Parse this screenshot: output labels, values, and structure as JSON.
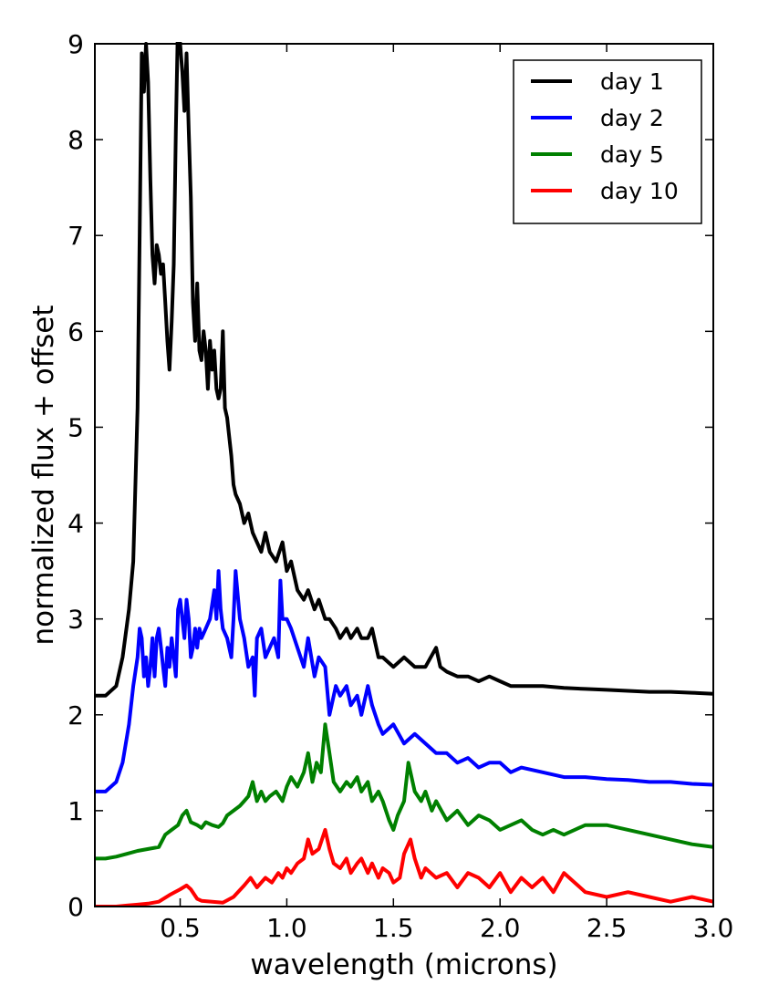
{
  "chart_data": {
    "type": "line",
    "title": "",
    "xlabel": "wavelength (microns)",
    "ylabel": "normalized flux + offset",
    "xlim": [
      0.1,
      3.0
    ],
    "ylim": [
      0,
      9
    ],
    "xticks": [
      0.5,
      1.0,
      1.5,
      2.0,
      2.5,
      3.0
    ],
    "xtick_labels": [
      "0.5",
      "1.0",
      "1.5",
      "2.0",
      "2.5",
      "3.0"
    ],
    "yticks": [
      0,
      1,
      2,
      3,
      4,
      5,
      6,
      7,
      8,
      9
    ],
    "ytick_labels": [
      "0",
      "1",
      "2",
      "3",
      "4",
      "5",
      "6",
      "7",
      "8",
      "9"
    ],
    "grid": false,
    "legend_position": "top-right",
    "series": [
      {
        "name": "day 1",
        "color": "#000000",
        "x": [
          0.1,
          0.15,
          0.2,
          0.23,
          0.26,
          0.28,
          0.3,
          0.31,
          0.32,
          0.33,
          0.34,
          0.35,
          0.36,
          0.37,
          0.38,
          0.39,
          0.4,
          0.41,
          0.42,
          0.43,
          0.44,
          0.45,
          0.46,
          0.47,
          0.48,
          0.49,
          0.5,
          0.51,
          0.52,
          0.53,
          0.54,
          0.55,
          0.56,
          0.57,
          0.58,
          0.59,
          0.6,
          0.61,
          0.62,
          0.63,
          0.64,
          0.65,
          0.66,
          0.67,
          0.68,
          0.69,
          0.7,
          0.71,
          0.72,
          0.73,
          0.74,
          0.75,
          0.76,
          0.78,
          0.8,
          0.82,
          0.84,
          0.86,
          0.88,
          0.9,
          0.92,
          0.95,
          0.98,
          1.0,
          1.02,
          1.05,
          1.08,
          1.1,
          1.13,
          1.15,
          1.18,
          1.2,
          1.23,
          1.25,
          1.28,
          1.3,
          1.33,
          1.35,
          1.38,
          1.4,
          1.43,
          1.45,
          1.5,
          1.55,
          1.6,
          1.65,
          1.7,
          1.72,
          1.75,
          1.8,
          1.85,
          1.9,
          1.95,
          2.0,
          2.05,
          2.1,
          2.2,
          2.3,
          2.4,
          2.5,
          2.6,
          2.7,
          2.8,
          2.9,
          3.0
        ],
        "y": [
          2.2,
          2.2,
          2.3,
          2.6,
          3.1,
          3.6,
          5.2,
          7.0,
          8.9,
          8.5,
          9.0,
          8.6,
          7.6,
          6.8,
          6.5,
          6.9,
          6.8,
          6.6,
          6.7,
          6.3,
          5.9,
          5.6,
          6.1,
          6.7,
          8.1,
          9.3,
          9.0,
          8.7,
          8.3,
          8.9,
          8.1,
          7.4,
          6.3,
          5.9,
          6.5,
          5.8,
          5.7,
          6.0,
          5.8,
          5.4,
          5.9,
          5.6,
          5.8,
          5.4,
          5.3,
          5.4,
          6.0,
          5.2,
          5.1,
          4.9,
          4.7,
          4.4,
          4.3,
          4.2,
          4.0,
          4.1,
          3.9,
          3.8,
          3.7,
          3.9,
          3.7,
          3.6,
          3.8,
          3.5,
          3.6,
          3.3,
          3.2,
          3.3,
          3.1,
          3.2,
          3.0,
          3.0,
          2.9,
          2.8,
          2.9,
          2.8,
          2.9,
          2.8,
          2.8,
          2.9,
          2.6,
          2.6,
          2.5,
          2.6,
          2.5,
          2.5,
          2.7,
          2.5,
          2.45,
          2.4,
          2.4,
          2.35,
          2.4,
          2.35,
          2.3,
          2.3,
          2.3,
          2.28,
          2.27,
          2.26,
          2.25,
          2.24,
          2.24,
          2.23,
          2.22
        ]
      },
      {
        "name": "day 2",
        "color": "#0000ff",
        "x": [
          0.1,
          0.15,
          0.2,
          0.23,
          0.26,
          0.28,
          0.3,
          0.31,
          0.32,
          0.33,
          0.34,
          0.35,
          0.36,
          0.37,
          0.38,
          0.39,
          0.4,
          0.41,
          0.42,
          0.43,
          0.44,
          0.45,
          0.46,
          0.47,
          0.48,
          0.49,
          0.5,
          0.51,
          0.52,
          0.53,
          0.54,
          0.55,
          0.56,
          0.57,
          0.58,
          0.59,
          0.6,
          0.62,
          0.64,
          0.66,
          0.67,
          0.68,
          0.69,
          0.7,
          0.72,
          0.74,
          0.75,
          0.76,
          0.78,
          0.8,
          0.82,
          0.84,
          0.85,
          0.86,
          0.88,
          0.9,
          0.92,
          0.94,
          0.96,
          0.97,
          0.98,
          1.0,
          1.02,
          1.05,
          1.08,
          1.1,
          1.13,
          1.15,
          1.18,
          1.2,
          1.23,
          1.25,
          1.28,
          1.3,
          1.33,
          1.35,
          1.38,
          1.4,
          1.43,
          1.45,
          1.5,
          1.55,
          1.6,
          1.65,
          1.7,
          1.75,
          1.8,
          1.85,
          1.9,
          1.95,
          2.0,
          2.05,
          2.1,
          2.2,
          2.3,
          2.4,
          2.5,
          2.6,
          2.7,
          2.8,
          2.9,
          3.0
        ],
        "y": [
          1.2,
          1.2,
          1.3,
          1.5,
          1.9,
          2.3,
          2.6,
          2.9,
          2.8,
          2.4,
          2.6,
          2.3,
          2.5,
          2.8,
          2.4,
          2.8,
          2.9,
          2.7,
          2.5,
          2.3,
          2.7,
          2.5,
          2.8,
          2.6,
          2.4,
          3.1,
          3.2,
          3.0,
          2.8,
          3.2,
          3.0,
          2.6,
          2.7,
          2.9,
          2.7,
          2.9,
          2.8,
          2.9,
          3.0,
          3.3,
          3.0,
          3.5,
          3.1,
          2.9,
          2.8,
          2.6,
          3.0,
          3.5,
          3.0,
          2.8,
          2.5,
          2.6,
          2.2,
          2.8,
          2.9,
          2.6,
          2.7,
          2.8,
          2.6,
          3.4,
          3.0,
          3.0,
          2.9,
          2.7,
          2.5,
          2.8,
          2.4,
          2.6,
          2.5,
          2.0,
          2.3,
          2.2,
          2.3,
          2.1,
          2.2,
          2.0,
          2.3,
          2.1,
          1.9,
          1.8,
          1.9,
          1.7,
          1.8,
          1.7,
          1.6,
          1.6,
          1.5,
          1.55,
          1.45,
          1.5,
          1.5,
          1.4,
          1.45,
          1.4,
          1.35,
          1.35,
          1.33,
          1.32,
          1.3,
          1.3,
          1.28,
          1.27
        ]
      },
      {
        "name": "day 5",
        "color": "#008000",
        "x": [
          0.1,
          0.15,
          0.2,
          0.25,
          0.3,
          0.35,
          0.4,
          0.43,
          0.46,
          0.49,
          0.51,
          0.53,
          0.55,
          0.58,
          0.6,
          0.62,
          0.65,
          0.68,
          0.7,
          0.72,
          0.75,
          0.78,
          0.8,
          0.82,
          0.84,
          0.86,
          0.88,
          0.9,
          0.92,
          0.95,
          0.98,
          1.0,
          1.02,
          1.05,
          1.08,
          1.1,
          1.12,
          1.14,
          1.16,
          1.18,
          1.2,
          1.22,
          1.25,
          1.28,
          1.3,
          1.33,
          1.35,
          1.38,
          1.4,
          1.43,
          1.45,
          1.48,
          1.5,
          1.52,
          1.55,
          1.57,
          1.6,
          1.63,
          1.65,
          1.68,
          1.7,
          1.75,
          1.8,
          1.85,
          1.9,
          1.95,
          2.0,
          2.05,
          2.1,
          2.15,
          2.2,
          2.25,
          2.3,
          2.35,
          2.4,
          2.5,
          2.6,
          2.7,
          2.8,
          2.9,
          3.0
        ],
        "y": [
          0.5,
          0.5,
          0.52,
          0.55,
          0.58,
          0.6,
          0.62,
          0.75,
          0.8,
          0.85,
          0.95,
          1.0,
          0.88,
          0.85,
          0.82,
          0.88,
          0.85,
          0.83,
          0.87,
          0.95,
          1.0,
          1.05,
          1.1,
          1.15,
          1.3,
          1.1,
          1.2,
          1.1,
          1.15,
          1.2,
          1.1,
          1.25,
          1.35,
          1.25,
          1.4,
          1.6,
          1.3,
          1.5,
          1.4,
          1.9,
          1.6,
          1.3,
          1.2,
          1.3,
          1.25,
          1.35,
          1.2,
          1.3,
          1.1,
          1.2,
          1.1,
          0.9,
          0.8,
          0.95,
          1.1,
          1.5,
          1.2,
          1.1,
          1.2,
          1.0,
          1.1,
          0.9,
          1.0,
          0.85,
          0.95,
          0.9,
          0.8,
          0.85,
          0.9,
          0.8,
          0.75,
          0.8,
          0.75,
          0.8,
          0.85,
          0.85,
          0.8,
          0.75,
          0.7,
          0.65,
          0.62
        ]
      },
      {
        "name": "day 10",
        "color": "#ff0000",
        "x": [
          0.1,
          0.15,
          0.2,
          0.25,
          0.3,
          0.35,
          0.4,
          0.45,
          0.5,
          0.53,
          0.55,
          0.58,
          0.6,
          0.65,
          0.7,
          0.75,
          0.8,
          0.83,
          0.86,
          0.9,
          0.93,
          0.96,
          0.98,
          1.0,
          1.02,
          1.05,
          1.08,
          1.1,
          1.12,
          1.15,
          1.18,
          1.2,
          1.22,
          1.25,
          1.28,
          1.3,
          1.33,
          1.35,
          1.38,
          1.4,
          1.43,
          1.45,
          1.48,
          1.5,
          1.53,
          1.55,
          1.58,
          1.6,
          1.63,
          1.65,
          1.7,
          1.75,
          1.8,
          1.85,
          1.9,
          1.95,
          2.0,
          2.05,
          2.1,
          2.15,
          2.2,
          2.25,
          2.3,
          2.35,
          2.4,
          2.5,
          2.6,
          2.7,
          2.8,
          2.9,
          3.0
        ],
        "y": [
          0.0,
          0.0,
          0.0,
          0.01,
          0.02,
          0.03,
          0.05,
          0.12,
          0.18,
          0.22,
          0.18,
          0.08,
          0.06,
          0.05,
          0.04,
          0.1,
          0.22,
          0.3,
          0.2,
          0.3,
          0.25,
          0.35,
          0.3,
          0.4,
          0.35,
          0.45,
          0.5,
          0.7,
          0.55,
          0.6,
          0.8,
          0.6,
          0.45,
          0.4,
          0.5,
          0.35,
          0.45,
          0.5,
          0.35,
          0.45,
          0.3,
          0.4,
          0.35,
          0.25,
          0.3,
          0.55,
          0.7,
          0.5,
          0.3,
          0.4,
          0.3,
          0.35,
          0.2,
          0.35,
          0.3,
          0.2,
          0.35,
          0.15,
          0.3,
          0.2,
          0.3,
          0.15,
          0.35,
          0.25,
          0.15,
          0.1,
          0.15,
          0.1,
          0.05,
          0.1,
          0.05
        ]
      }
    ]
  }
}
